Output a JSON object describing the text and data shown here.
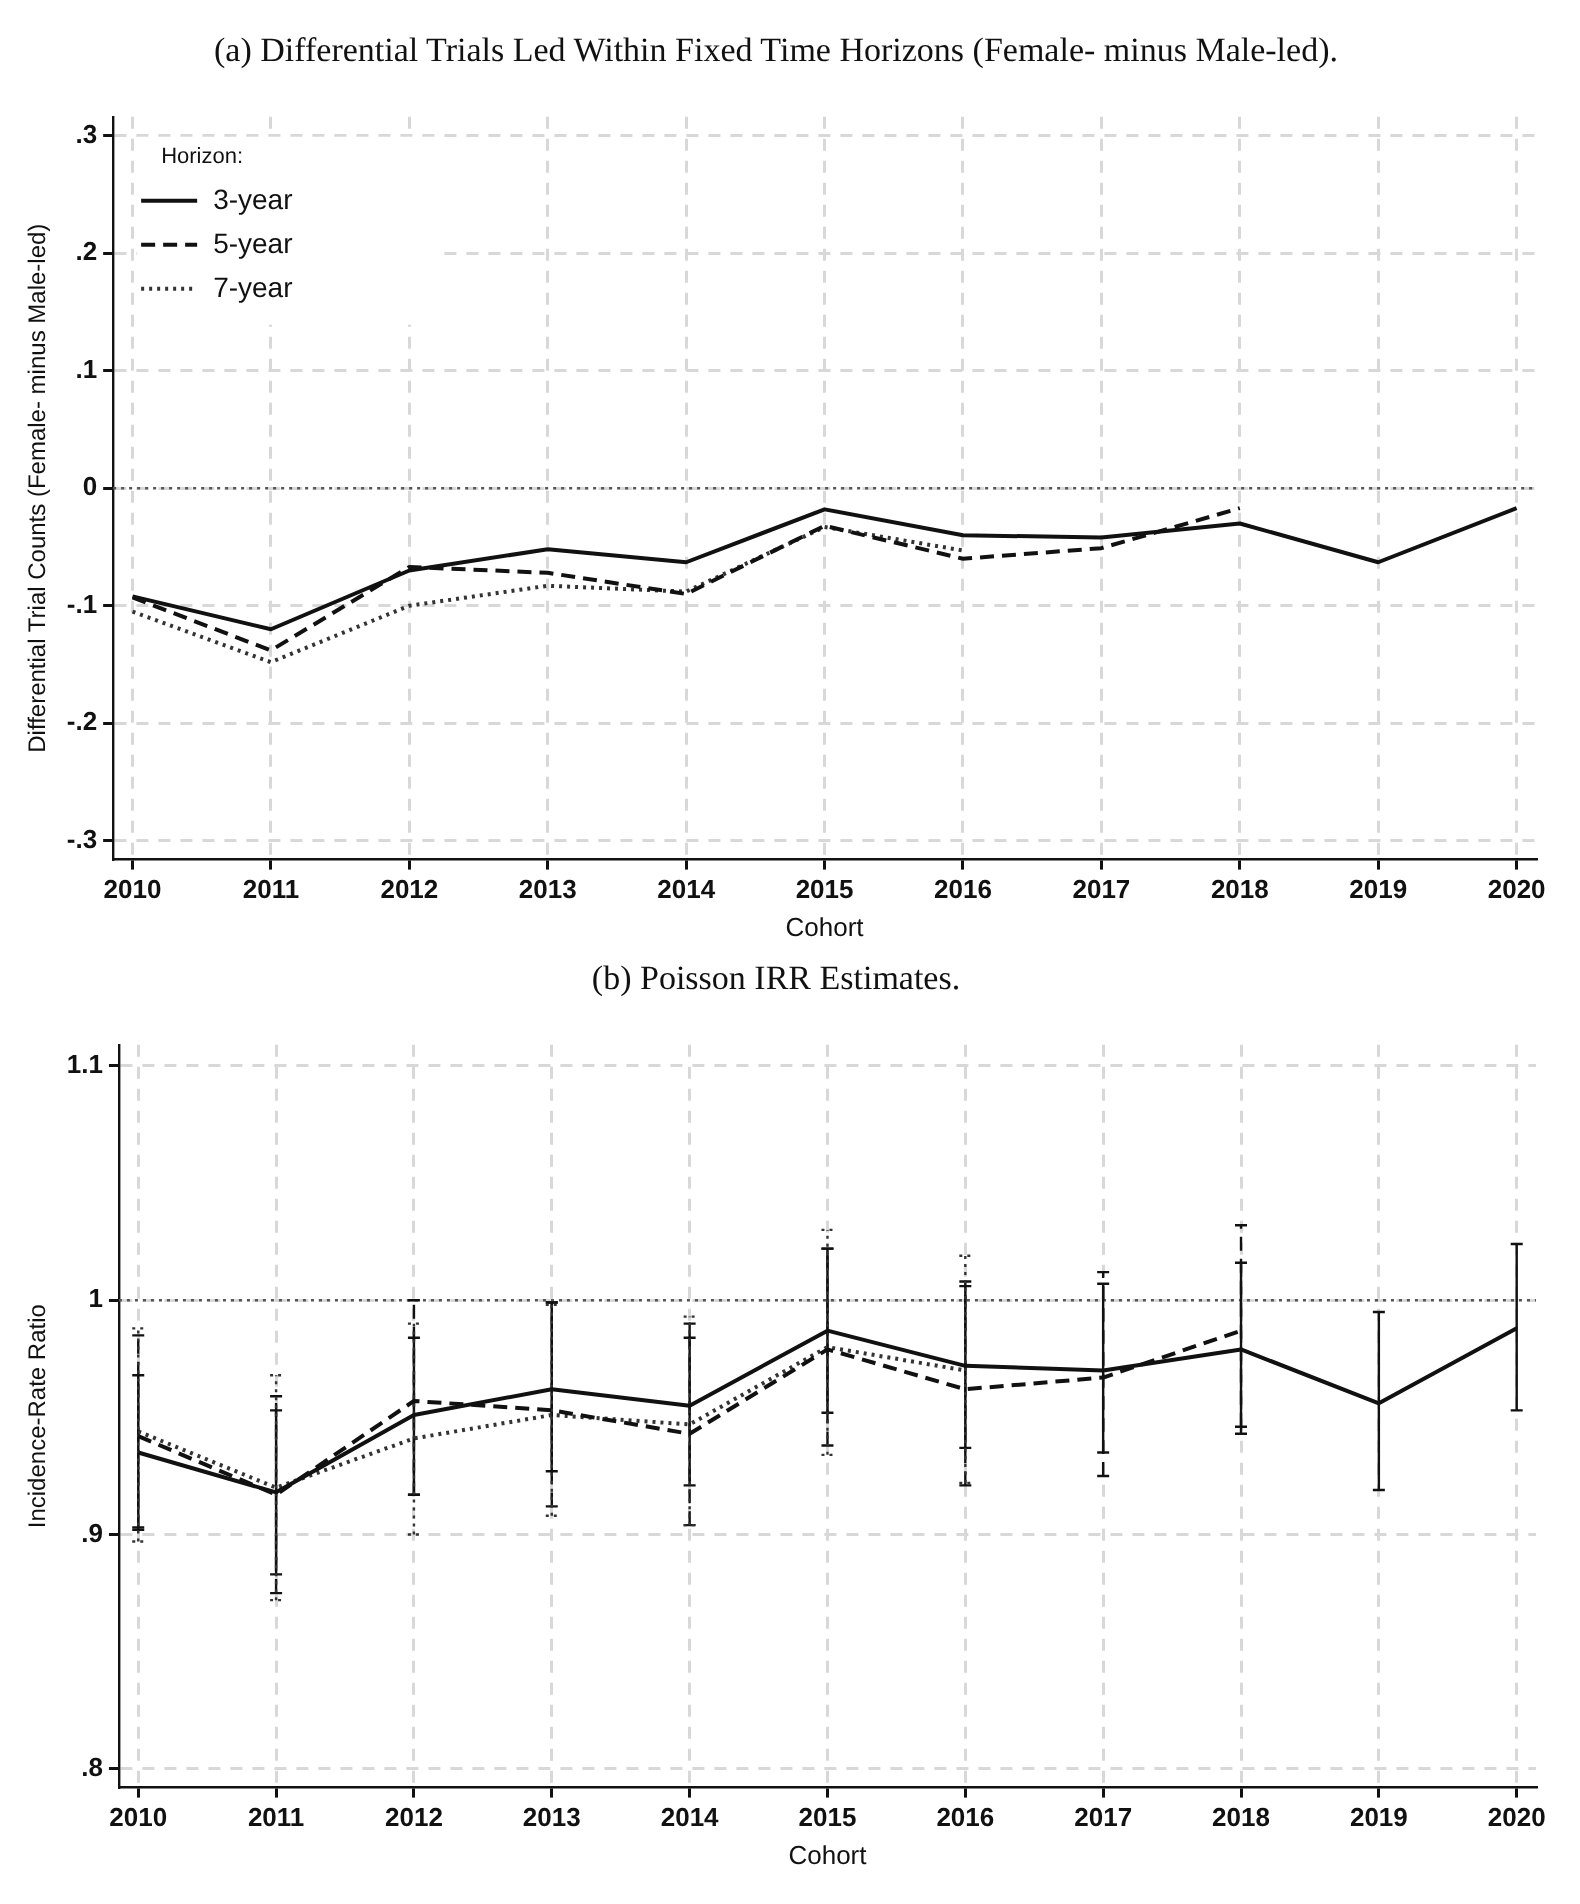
{
  "chart_data": [
    {
      "type": "line",
      "title": "(a) Differential Trials Led Within Fixed Time Horizons (Female- minus Male-led).",
      "xlabel": "Cohort",
      "ylabel": "Differential Trial Counts (Female- minus Male-led)",
      "legend_title": "Horizon:",
      "legend": "top left",
      "grid": true,
      "marker": "none",
      "x": [
        2010,
        2011,
        2012,
        2013,
        2014,
        2015,
        2016,
        2017,
        2018,
        2019,
        2020
      ],
      "xlim": [
        2009.86,
        2020.14
      ],
      "xticks": [
        2010,
        2011,
        2012,
        2013,
        2014,
        2015,
        2016,
        2017,
        2018,
        2019,
        2020
      ],
      "ylim": [
        -0.316,
        0.316
      ],
      "yticks": [
        {
          "value": -0.3,
          "label": "-.3"
        },
        {
          "value": -0.2,
          "label": "-.2"
        },
        {
          "value": -0.1,
          "label": "-.1"
        },
        0,
        {
          "value": 0.1,
          "label": ".1"
        },
        {
          "value": 0.2,
          "label": ".2"
        },
        {
          "value": 0.3,
          "label": ".3"
        }
      ],
      "ref_lines": [
        {
          "axis": "y",
          "value": 0,
          "color": "#555555",
          "line_style": "dotted"
        }
      ],
      "series": [
        {
          "name": "3-year",
          "color": "#111111",
          "line_style": "solid",
          "values": [
            -0.092,
            -0.12,
            -0.07,
            -0.052,
            -0.063,
            -0.018,
            -0.04,
            -0.042,
            -0.03,
            -0.063,
            -0.017
          ]
        },
        {
          "name": "5-year",
          "color": "#111111",
          "line_style": "dashed",
          "values": [
            -0.093,
            -0.138,
            -0.067,
            -0.072,
            -0.09,
            -0.032,
            -0.06,
            -0.051,
            -0.017,
            null,
            null
          ]
        },
        {
          "name": "7-year",
          "color": "#333333",
          "line_style": "dotted",
          "values": [
            -0.105,
            -0.148,
            -0.1,
            -0.083,
            -0.088,
            -0.033,
            -0.053,
            null,
            null,
            null,
            null
          ]
        }
      ]
    },
    {
      "type": "line",
      "title": "(b) Poisson IRR Estimates.",
      "xlabel": "Cohort",
      "ylabel": "Incidence-Rate Ratio",
      "grid": true,
      "marker": "none",
      "x": [
        2010,
        2011,
        2012,
        2013,
        2014,
        2015,
        2016,
        2017,
        2018,
        2019,
        2020
      ],
      "xlim": [
        2009.86,
        2020.14
      ],
      "xticks": [
        2010,
        2011,
        2012,
        2013,
        2014,
        2015,
        2016,
        2017,
        2018,
        2019,
        2020
      ],
      "ylim": [
        0.792,
        1.109
      ],
      "yticks": [
        {
          "value": 0.8,
          "label": ".8"
        },
        {
          "value": 0.9,
          "label": ".9"
        },
        1,
        1.1
      ],
      "ref_lines": [
        {
          "axis": "y",
          "value": 1,
          "color": "#555555",
          "line_style": "dotted"
        }
      ],
      "series": [
        {
          "color": "#111111",
          "line_style": "solid",
          "values": [
            0.935,
            0.918,
            0.951,
            0.962,
            0.955,
            0.987,
            0.972,
            0.97,
            0.979,
            0.956,
            0.988
          ],
          "errors": [
            [
              0.903,
              0.968
            ],
            [
              0.883,
              0.953
            ],
            [
              0.917,
              0.984
            ],
            [
              0.927,
              0.999
            ],
            [
              0.921,
              0.99
            ],
            [
              0.952,
              1.022
            ],
            [
              0.937,
              1.008
            ],
            [
              0.935,
              1.007
            ],
            [
              0.943,
              1.016
            ],
            [
              0.919,
              0.995
            ],
            [
              0.953,
              1.024
            ]
          ]
        },
        {
          "color": "#111111",
          "line_style": "dashed",
          "values": [
            0.942,
            0.917,
            0.957,
            0.953,
            0.943,
            0.979,
            0.962,
            0.967,
            0.987,
            null,
            null
          ],
          "errors": [
            [
              0.902,
              0.985
            ],
            [
              0.875,
              0.959
            ],
            [
              0.917,
              1.0
            ],
            [
              0.912,
              0.999
            ],
            [
              0.904,
              0.984
            ],
            [
              0.938,
              1.022
            ],
            [
              0.921,
              1.006
            ],
            [
              0.925,
              1.012
            ],
            [
              0.946,
              1.032
            ],
            null,
            null
          ]
        },
        {
          "color": "#333333",
          "line_style": "dotted",
          "values": [
            0.944,
            0.92,
            0.941,
            0.951,
            0.947,
            0.98,
            0.97,
            null,
            null,
            null,
            null
          ],
          "errors": [
            [
              0.897,
              0.988
            ],
            [
              0.872,
              0.968
            ],
            [
              0.9,
              0.99
            ],
            [
              0.908,
              0.998
            ],
            [
              0.904,
              0.993
            ],
            [
              0.934,
              1.03
            ],
            [
              0.922,
              1.019
            ],
            null,
            null,
            null,
            null
          ]
        }
      ]
    }
  ]
}
